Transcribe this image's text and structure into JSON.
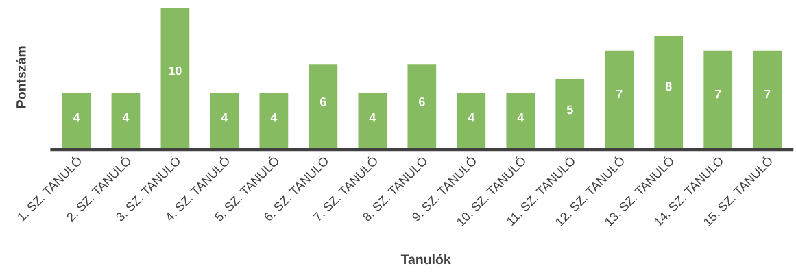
{
  "chart_data": {
    "type": "bar",
    "xlabel": "Tanulók",
    "ylabel": "Pontszám",
    "categories": [
      "1. SZ. TANULÓ",
      "2. SZ. TANULÓ",
      "3. SZ. TANULÓ",
      "4. SZ. TANULÓ",
      "5. SZ. TANULÓ",
      "6. SZ. TANULÓ",
      "7. SZ. TANULÓ",
      "8. SZ. TANULÓ",
      "9. SZ. TANULÓ",
      "10. SZ. TANULÓ",
      "11. SZ. TANULÓ",
      "12. SZ. TANULÓ",
      "13. SZ. TANULÓ",
      "14. SZ. TANULÓ",
      "15. SZ. TANULÓ"
    ],
    "values": [
      4,
      4,
      10,
      4,
      4,
      6,
      4,
      6,
      4,
      4,
      5,
      7,
      8,
      7,
      7
    ],
    "color": "#87bb62",
    "data_labels": true,
    "grid": false
  }
}
